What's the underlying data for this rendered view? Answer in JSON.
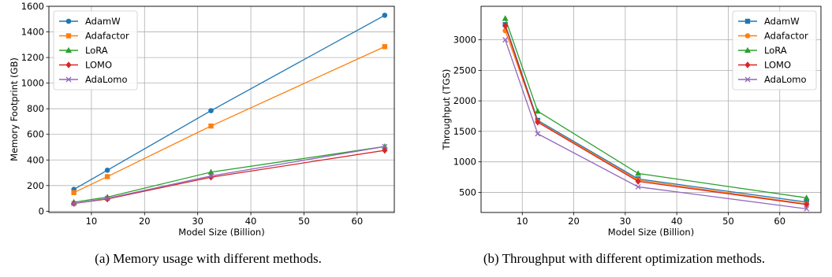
{
  "captions": {
    "a": "(a) Memory usage with different methods.",
    "b": "(b) Throughput with different optimization methods."
  },
  "chart_data": [
    {
      "type": "line",
      "xlabel": "Model Size (Billion)",
      "ylabel": "Memory Footprint (GB)",
      "xlim": [
        2,
        67
      ],
      "ylim": [
        -10,
        1600
      ],
      "xticks": [
        10,
        20,
        30,
        40,
        50,
        60
      ],
      "yticks": [
        0,
        200,
        400,
        600,
        800,
        1000,
        1200,
        1400,
        1600
      ],
      "grid": true,
      "legend": "top-left",
      "x": [
        6.7,
        13,
        32.5,
        65.2
      ],
      "series": [
        {
          "name": "AdamW",
          "color": "#1f77b4",
          "marker": "circle",
          "values": [
            170,
            320,
            785,
            1530
          ]
        },
        {
          "name": "Adafactor",
          "color": "#ff7f0e",
          "marker": "square",
          "values": [
            145,
            270,
            665,
            1285
          ]
        },
        {
          "name": "LoRA",
          "color": "#2ca02c",
          "marker": "triangle",
          "values": [
            70,
            110,
            305,
            505
          ]
        },
        {
          "name": "LOMO",
          "color": "#d62728",
          "marker": "diamond",
          "values": [
            60,
            95,
            265,
            475
          ]
        },
        {
          "name": "AdaLomo",
          "color": "#9467bd",
          "marker": "x",
          "values": [
            60,
            100,
            275,
            505
          ]
        }
      ]
    },
    {
      "type": "line",
      "xlabel": "Model Size (Billion)",
      "ylabel": "Throughput (TGS)",
      "xlim": [
        2,
        68
      ],
      "ylim": [
        170,
        3550
      ],
      "xticks": [
        10,
        20,
        30,
        40,
        50,
        60
      ],
      "yticks": [
        500,
        1000,
        1500,
        2000,
        2500,
        3000
      ],
      "grid": true,
      "legend": "top-right",
      "x": [
        6.7,
        13,
        32.5,
        65.2
      ],
      "series": [
        {
          "name": "AdamW",
          "color": "#1f77b4",
          "marker": "square",
          "values": [
            3250,
            1680,
            720,
            340
          ]
        },
        {
          "name": "Adafactor",
          "color": "#ff7f0e",
          "marker": "circle",
          "values": [
            3150,
            1660,
            700,
            310
          ]
        },
        {
          "name": "LoRA",
          "color": "#2ca02c",
          "marker": "triangle",
          "values": [
            3350,
            1830,
            810,
            410
          ]
        },
        {
          "name": "LOMO",
          "color": "#d62728",
          "marker": "diamond",
          "values": [
            3230,
            1650,
            680,
            300
          ]
        },
        {
          "name": "AdaLomo",
          "color": "#9467bd",
          "marker": "x",
          "values": [
            3000,
            1460,
            590,
            230
          ]
        }
      ]
    }
  ]
}
